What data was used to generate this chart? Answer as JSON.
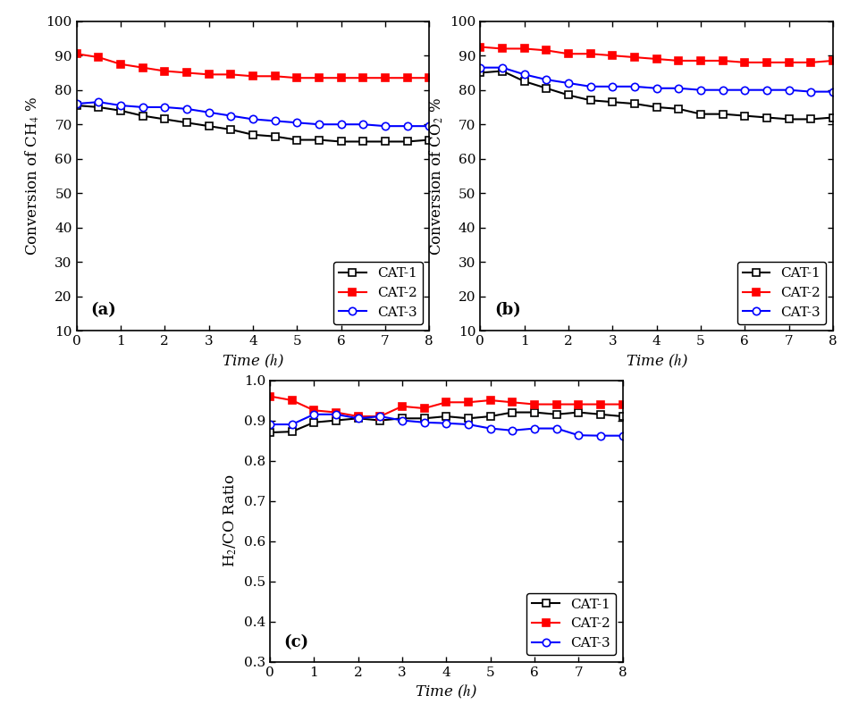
{
  "time_ab": [
    0,
    0.5,
    1.0,
    1.5,
    2.0,
    2.5,
    3.0,
    3.5,
    4.0,
    4.5,
    5.0,
    5.5,
    6.0,
    6.5,
    7.0,
    7.5,
    8.0
  ],
  "ch4_cat1": [
    75.5,
    75.0,
    74.0,
    72.5,
    71.5,
    70.5,
    69.5,
    68.5,
    67.0,
    66.5,
    65.5,
    65.5,
    65.0,
    65.0,
    65.0,
    65.0,
    65.5
  ],
  "ch4_cat2": [
    90.5,
    89.5,
    87.5,
    86.5,
    85.5,
    85.0,
    84.5,
    84.5,
    84.0,
    84.0,
    83.5,
    83.5,
    83.5,
    83.5,
    83.5,
    83.5,
    83.5
  ],
  "ch4_cat3": [
    76.0,
    76.5,
    75.5,
    75.0,
    75.0,
    74.5,
    73.5,
    72.5,
    71.5,
    71.0,
    70.5,
    70.0,
    70.0,
    70.0,
    69.5,
    69.5,
    69.5
  ],
  "co2_cat1": [
    85.0,
    85.5,
    82.5,
    80.5,
    78.5,
    77.0,
    76.5,
    76.0,
    75.0,
    74.5,
    73.0,
    73.0,
    72.5,
    72.0,
    71.5,
    71.5,
    72.0
  ],
  "co2_cat2": [
    92.5,
    92.0,
    92.0,
    91.5,
    90.5,
    90.5,
    90.0,
    89.5,
    89.0,
    88.5,
    88.5,
    88.5,
    88.0,
    88.0,
    88.0,
    88.0,
    88.5
  ],
  "co2_cat3": [
    86.5,
    86.5,
    84.5,
    83.0,
    82.0,
    81.0,
    81.0,
    81.0,
    80.5,
    80.5,
    80.0,
    80.0,
    80.0,
    80.0,
    80.0,
    79.5,
    79.5
  ],
  "ratio_cat1": [
    0.87,
    0.872,
    0.895,
    0.9,
    0.905,
    0.9,
    0.905,
    0.905,
    0.91,
    0.905,
    0.91,
    0.92,
    0.92,
    0.915,
    0.92,
    0.915,
    0.91
  ],
  "ratio_cat2": [
    0.96,
    0.95,
    0.925,
    0.92,
    0.91,
    0.91,
    0.935,
    0.93,
    0.945,
    0.945,
    0.95,
    0.945,
    0.94,
    0.94,
    0.94,
    0.94,
    0.94
  ],
  "ratio_cat3": [
    0.89,
    0.89,
    0.915,
    0.915,
    0.905,
    0.91,
    0.9,
    0.895,
    0.893,
    0.89,
    0.88,
    0.875,
    0.88,
    0.88,
    0.863,
    0.862,
    0.862
  ],
  "ylabel_a": "Conversion of CH$_4$ %",
  "ylabel_b": "Conversion of CO$_2$ %",
  "ylabel_c": "H$_2$/CO Ratio",
  "xlabel": "Time ($h$)",
  "label_a": "(a)",
  "label_b": "(b)",
  "label_c": "(c)",
  "cat_labels": [
    "CAT-1",
    "CAT-2",
    "CAT-3"
  ],
  "colors": [
    "black",
    "red",
    "blue"
  ],
  "ylim_ab": [
    10,
    100
  ],
  "yticks_ab": [
    10,
    20,
    30,
    40,
    50,
    60,
    70,
    80,
    90,
    100
  ],
  "ylim_c": [
    0.3,
    1.0
  ],
  "yticks_c": [
    0.3,
    0.4,
    0.5,
    0.6,
    0.7,
    0.8,
    0.9,
    1.0
  ],
  "xlim": [
    0,
    8
  ],
  "xticks": [
    0,
    1,
    2,
    3,
    4,
    5,
    6,
    7,
    8
  ],
  "fontsize_label": 12,
  "fontsize_tick": 11,
  "fontsize_legend": 11,
  "fontsize_panel": 13,
  "linewidth": 1.5,
  "marker_size": 6
}
